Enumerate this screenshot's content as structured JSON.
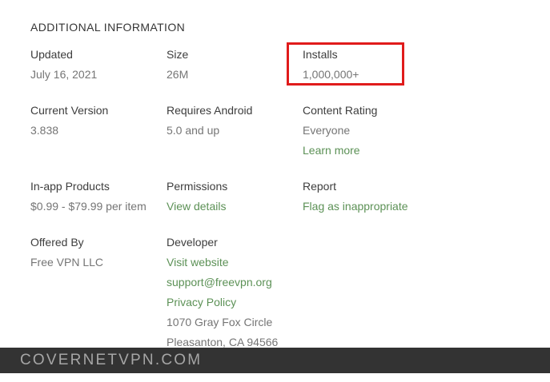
{
  "info": {
    "heading": "ADDITIONAL INFORMATION",
    "updated": {
      "label": "Updated",
      "value": "July 16, 2021"
    },
    "size": {
      "label": "Size",
      "value": "26M"
    },
    "installs": {
      "label": "Installs",
      "value": "1,000,000+"
    },
    "current_version": {
      "label": "Current Version",
      "value": "3.838"
    },
    "requires_android": {
      "label": "Requires Android",
      "value": "5.0 and up"
    },
    "content_rating": {
      "label": "Content Rating",
      "value": "Everyone",
      "link": "Learn more"
    },
    "in_app_products": {
      "label": "In-app Products",
      "value": "$0.99 - $79.99 per item"
    },
    "permissions": {
      "label": "Permissions",
      "link": "View details"
    },
    "report": {
      "label": "Report",
      "link": "Flag as inappropriate"
    },
    "offered_by": {
      "label": "Offered By",
      "value": "Free VPN LLC"
    },
    "developer": {
      "label": "Developer",
      "website_link": "Visit website",
      "email_link": "support@freevpn.org",
      "privacy_link": "Privacy Policy",
      "address_line1": "1070 Gray Fox Circle",
      "address_line2": "Pleasanton, CA 94566"
    }
  },
  "footer": {
    "text": "COVERNETVPN.COM"
  },
  "colors": {
    "link_green": "#5c9156",
    "highlight_red": "#e01b1b",
    "footer_background": "#333333",
    "footer_text": "#a6a6a6",
    "label_text": "#3d3d3d",
    "value_text": "#757575"
  }
}
